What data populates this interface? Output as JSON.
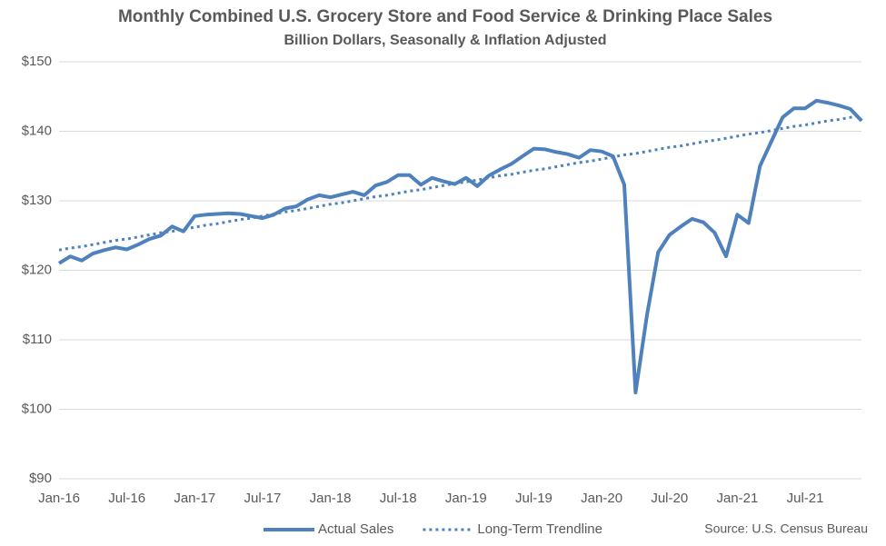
{
  "chart_data": {
    "type": "line",
    "title": "Monthly Combined U.S. Grocery Store and Food Service & Drinking Place Sales",
    "subtitle": "Billion Dollars, Seasonally & Inflation Adjusted",
    "source": "Source: U.S. Census Bureau",
    "categories": [
      "Jan-16",
      null,
      null,
      null,
      null,
      null,
      "Jul-16",
      null,
      null,
      null,
      null,
      null,
      "Jan-17",
      null,
      null,
      null,
      null,
      null,
      "Jul-17",
      null,
      null,
      null,
      null,
      null,
      "Jan-18",
      null,
      null,
      null,
      null,
      null,
      "Jul-18",
      null,
      null,
      null,
      null,
      null,
      "Jan-19",
      null,
      null,
      null,
      null,
      null,
      "Jul-19",
      null,
      null,
      null,
      null,
      null,
      "Jan-20",
      null,
      null,
      null,
      null,
      null,
      "Jul-20",
      null,
      null,
      null,
      null,
      null,
      "Jan-21",
      null,
      null,
      null,
      null,
      null,
      "Jul-21",
      null,
      null,
      null,
      null,
      null
    ],
    "series": [
      {
        "name": "Actual Sales",
        "color": "#4f81bd",
        "style": "solid",
        "values": [
          121.0,
          122.0,
          121.4,
          122.4,
          122.9,
          123.3,
          123.0,
          123.7,
          124.5,
          125.0,
          126.3,
          125.6,
          127.8,
          128.0,
          128.1,
          128.2,
          128.1,
          127.8,
          127.5,
          128.0,
          128.9,
          129.2,
          130.2,
          130.8,
          130.5,
          130.9,
          131.3,
          130.8,
          132.2,
          132.7,
          133.7,
          133.7,
          132.3,
          133.3,
          132.8,
          132.4,
          133.3,
          132.1,
          133.6,
          134.5,
          135.3,
          136.4,
          137.5,
          137.4,
          137.0,
          136.7,
          136.2,
          137.3,
          137.1,
          136.4,
          132.3,
          102.4,
          113.5,
          122.6,
          125.1,
          126.3,
          127.4,
          126.9,
          125.4,
          122.0,
          128.0,
          126.8,
          135.0,
          138.5,
          142.0,
          143.3,
          143.3,
          144.4,
          144.1,
          143.7,
          143.2,
          141.5
        ]
      },
      {
        "name": "Long-Term Trendline",
        "color": "#4f81bd",
        "style": "dotted",
        "values": [
          122.9,
          123.2,
          123.4,
          123.7,
          124.0,
          124.3,
          124.5,
          124.8,
          125.1,
          125.4,
          125.6,
          125.9,
          126.2,
          126.5,
          126.7,
          127.0,
          127.3,
          127.5,
          127.8,
          128.1,
          128.4,
          128.6,
          128.9,
          129.2,
          129.5,
          129.7,
          130.0,
          130.3,
          130.6,
          130.8,
          131.1,
          131.4,
          131.6,
          131.9,
          132.2,
          132.5,
          132.7,
          133.0,
          133.3,
          133.6,
          133.8,
          134.1,
          134.4,
          134.6,
          134.9,
          135.2,
          135.5,
          135.7,
          136.0,
          136.3,
          136.6,
          136.8,
          137.1,
          137.4,
          137.7,
          137.9,
          138.2,
          138.5,
          138.7,
          139.0,
          139.3,
          139.6,
          139.8,
          140.1,
          140.4,
          140.7,
          140.9,
          141.2,
          141.5,
          141.7,
          142.0,
          142.3
        ]
      }
    ],
    "ylim": [
      90,
      150
    ],
    "yticks": [
      {
        "value": 90,
        "label": "$90"
      },
      {
        "value": 100,
        "label": "$100"
      },
      {
        "value": 110,
        "label": "$110"
      },
      {
        "value": 120,
        "label": "$120"
      },
      {
        "value": 130,
        "label": "$130"
      },
      {
        "value": 140,
        "label": "$140"
      },
      {
        "value": 150,
        "label": "$150"
      }
    ],
    "grid": true,
    "legend": "bottom"
  }
}
